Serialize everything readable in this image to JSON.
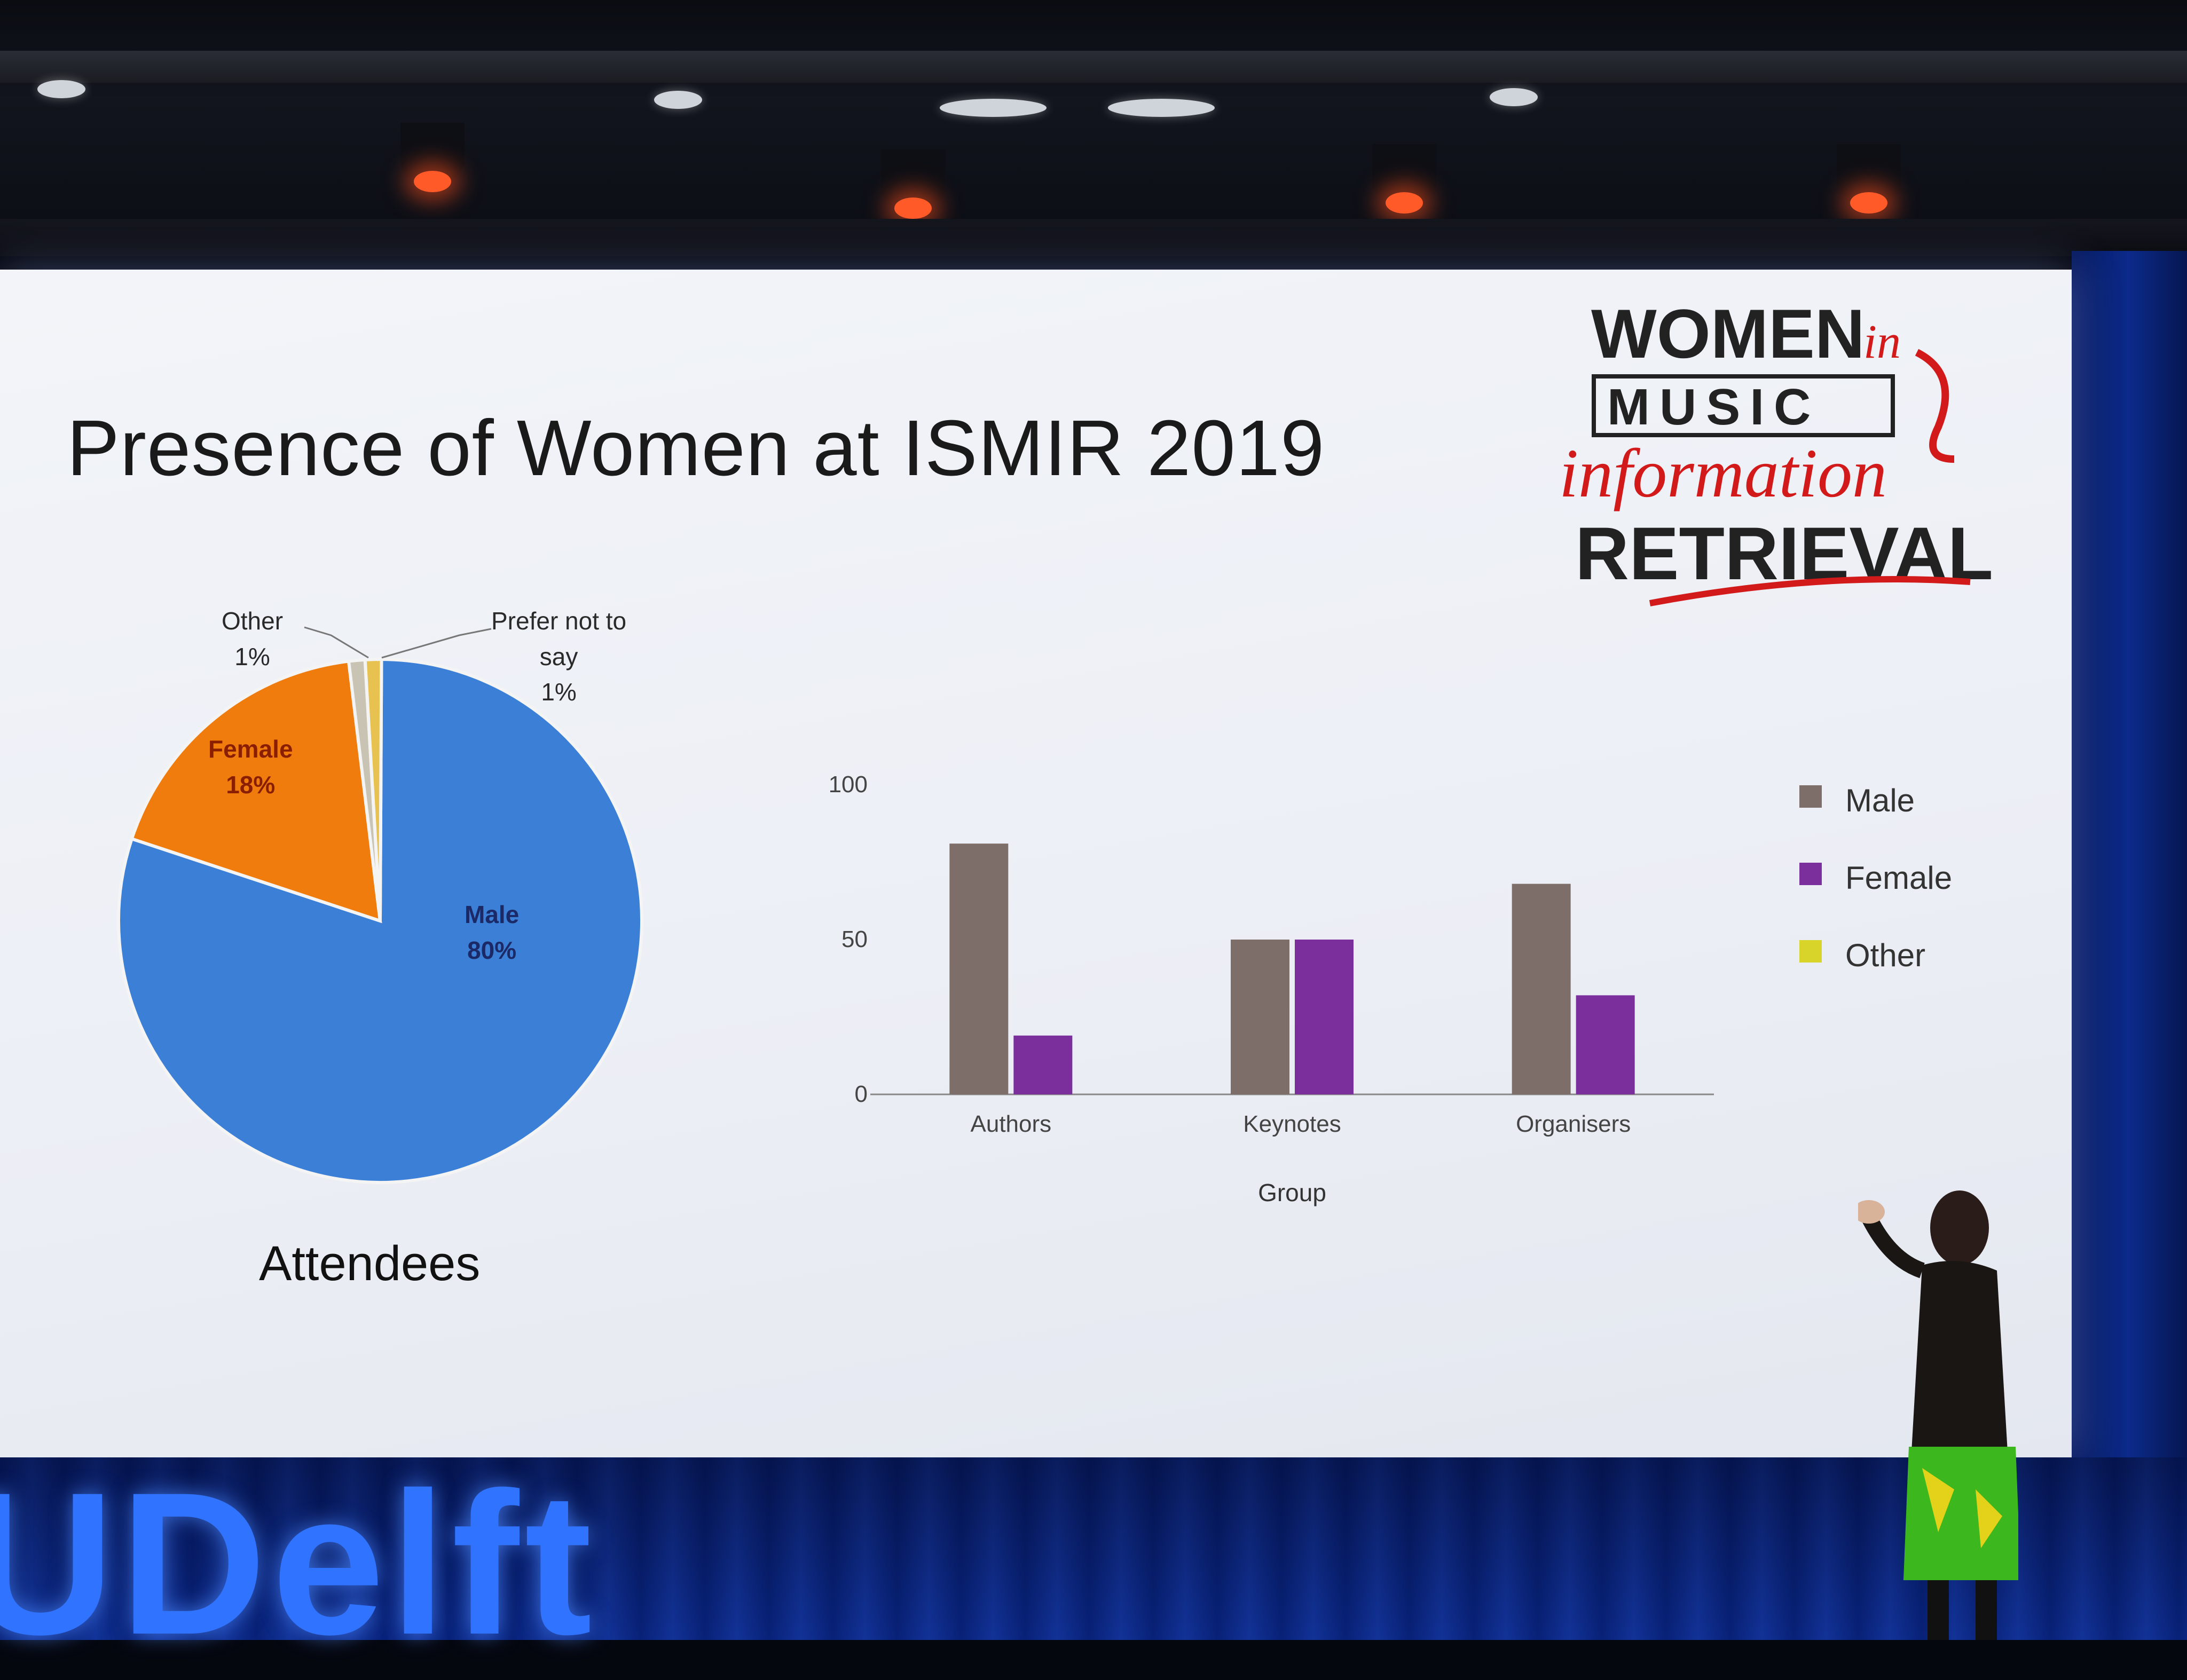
{
  "slide": {
    "title": "Presence of Women at ISMIR 2019",
    "logo_text": [
      "WOMEN",
      "in",
      "MUSIC",
      "information",
      "RETRIEVAL"
    ]
  },
  "pie": {
    "caption": "Attendees",
    "slices": [
      {
        "label": "Male",
        "value": "80%",
        "fraction": 0.8,
        "color": "#3b7fd6"
      },
      {
        "label": "Female",
        "value": "18%",
        "fraction": 0.18,
        "color": "#f07c0d"
      },
      {
        "label": "Other",
        "value": "1%",
        "fraction": 0.01,
        "color": "#c9c3b3"
      },
      {
        "label": "Prefer not to say",
        "value": "1%",
        "fraction": 0.01,
        "color": "#e8c250"
      }
    ],
    "label_other": "Other",
    "label_other_value": "1%",
    "label_pnts_1": "Prefer not to",
    "label_pnts_2": "say",
    "label_pnts_value": "1%",
    "label_female": "Female",
    "label_female_value": "18%",
    "label_male": "Male",
    "label_male_value": "80%"
  },
  "chart_data": [
    {
      "type": "pie",
      "title": "Attendees",
      "categories": [
        "Male",
        "Female",
        "Other",
        "Prefer not to say"
      ],
      "values": [
        80,
        18,
        1,
        1
      ]
    },
    {
      "type": "bar",
      "categories": [
        "Authors",
        "Keynotes",
        "Organisers"
      ],
      "series": [
        {
          "name": "Male",
          "values": [
            81,
            50,
            68
          ],
          "color": "#7d6e6a"
        },
        {
          "name": "Female",
          "values": [
            19,
            50,
            32
          ],
          "color": "#7a2f9c"
        },
        {
          "name": "Other",
          "values": [
            0,
            0,
            0
          ],
          "color": "#d8d42a"
        }
      ],
      "xlabel": "Group",
      "ylabel": "",
      "ylim": [
        0,
        100
      ],
      "yticks": [
        "0",
        "50",
        "100"
      ],
      "legend": "right"
    }
  ],
  "stage": {
    "sign_text": "UDelft"
  }
}
